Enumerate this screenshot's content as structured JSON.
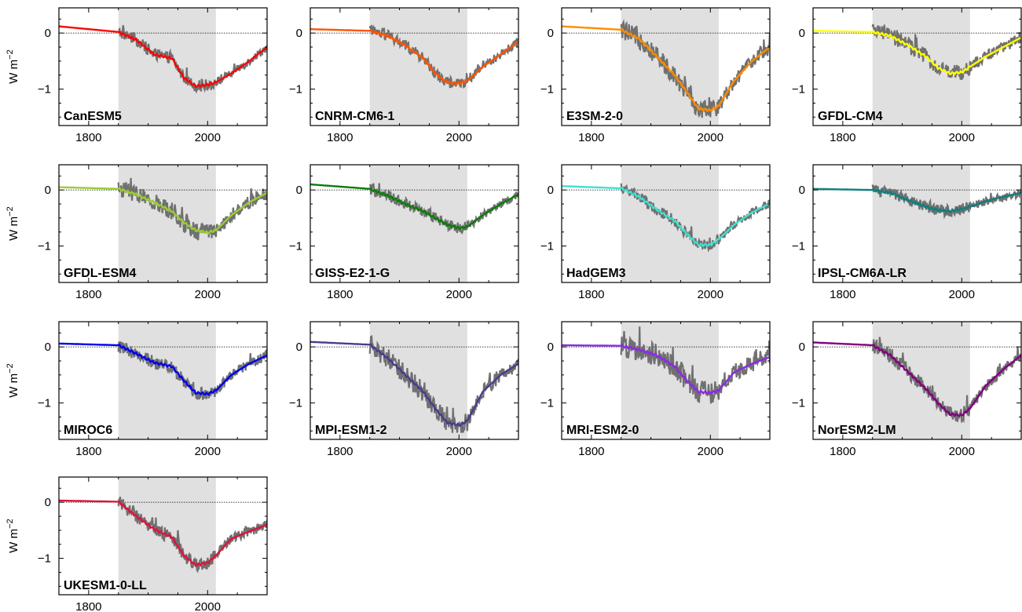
{
  "chart_data": {
    "type": "line",
    "layout": "small-multiples",
    "ylabel": "W m",
    "ylabel_superscript": "−2",
    "xlim": [
      1750,
      2100
    ],
    "ylim": [
      -1.65,
      0.45
    ],
    "xticks": [
      1800,
      2000
    ],
    "xtick_labels": [
      "1800",
      "2000"
    ],
    "yticks": [
      0,
      -1
    ],
    "ytick_labels": [
      "0",
      "−1"
    ],
    "shaded_period": [
      1850,
      2014
    ],
    "shade_color": "#e0e0e0",
    "zero_line": true,
    "raw_series_color": "#707070",
    "models": [
      {
        "name": "CanESM5",
        "color": "#ff0000",
        "pts": [
          [
            1750,
            0.12
          ],
          [
            1850,
            0.02
          ],
          [
            1880,
            -0.12
          ],
          [
            1910,
            -0.38
          ],
          [
            1940,
            -0.45
          ],
          [
            1960,
            -0.8
          ],
          [
            1980,
            -0.95
          ],
          [
            2000,
            -0.92
          ],
          [
            2014,
            -0.88
          ],
          [
            2040,
            -0.72
          ],
          [
            2070,
            -0.5
          ],
          [
            2100,
            -0.25
          ]
        ],
        "noise": 0.1
      },
      {
        "name": "CNRM-CM6-1",
        "color": "#ff5500",
        "pts": [
          [
            1750,
            0.07
          ],
          [
            1850,
            0.04
          ],
          [
            1880,
            -0.05
          ],
          [
            1910,
            -0.22
          ],
          [
            1940,
            -0.45
          ],
          [
            1960,
            -0.72
          ],
          [
            1980,
            -0.88
          ],
          [
            2000,
            -0.9
          ],
          [
            2014,
            -0.85
          ],
          [
            2040,
            -0.6
          ],
          [
            2070,
            -0.38
          ],
          [
            2100,
            -0.15
          ]
        ],
        "noise": 0.1
      },
      {
        "name": "E3SM-2-0",
        "color": "#ff8c00",
        "pts": [
          [
            1750,
            0.12
          ],
          [
            1850,
            0.06
          ],
          [
            1880,
            -0.1
          ],
          [
            1910,
            -0.42
          ],
          [
            1940,
            -0.75
          ],
          [
            1960,
            -1.05
          ],
          [
            1980,
            -1.35
          ],
          [
            2000,
            -1.38
          ],
          [
            2014,
            -1.3
          ],
          [
            2040,
            -0.85
          ],
          [
            2070,
            -0.5
          ],
          [
            2100,
            -0.25
          ]
        ],
        "noise": 0.17
      },
      {
        "name": "GFDL-CM4",
        "color": "#ffff00",
        "pts": [
          [
            1750,
            0.04
          ],
          [
            1850,
            0.02
          ],
          [
            1880,
            -0.05
          ],
          [
            1910,
            -0.22
          ],
          [
            1940,
            -0.42
          ],
          [
            1960,
            -0.62
          ],
          [
            1980,
            -0.72
          ],
          [
            2000,
            -0.7
          ],
          [
            2014,
            -0.6
          ],
          [
            2040,
            -0.42
          ],
          [
            2070,
            -0.25
          ],
          [
            2100,
            -0.08
          ]
        ],
        "noise": 0.14
      },
      {
        "name": "GFDL-ESM4",
        "color": "#9acd32",
        "pts": [
          [
            1750,
            0.05
          ],
          [
            1850,
            0.02
          ],
          [
            1880,
            -0.08
          ],
          [
            1910,
            -0.22
          ],
          [
            1940,
            -0.38
          ],
          [
            1960,
            -0.58
          ],
          [
            1980,
            -0.72
          ],
          [
            2000,
            -0.76
          ],
          [
            2014,
            -0.72
          ],
          [
            2040,
            -0.45
          ],
          [
            2070,
            -0.22
          ],
          [
            2100,
            -0.05
          ]
        ],
        "noise": 0.16
      },
      {
        "name": "GISS-E2-1-G",
        "color": "#0a7d0a",
        "pts": [
          [
            1750,
            0.1
          ],
          [
            1850,
            0.02
          ],
          [
            1880,
            -0.1
          ],
          [
            1910,
            -0.25
          ],
          [
            1940,
            -0.38
          ],
          [
            1960,
            -0.5
          ],
          [
            1980,
            -0.62
          ],
          [
            2000,
            -0.68
          ],
          [
            2014,
            -0.66
          ],
          [
            2040,
            -0.45
          ],
          [
            2070,
            -0.25
          ],
          [
            2100,
            -0.08
          ]
        ],
        "noise": 0.1
      },
      {
        "name": "HadGEM3",
        "color": "#40e0d0",
        "pts": [
          [
            1750,
            0.07
          ],
          [
            1850,
            0.03
          ],
          [
            1880,
            -0.12
          ],
          [
            1910,
            -0.35
          ],
          [
            1940,
            -0.55
          ],
          [
            1960,
            -0.78
          ],
          [
            1980,
            -0.98
          ],
          [
            2000,
            -0.98
          ],
          [
            2014,
            -0.88
          ],
          [
            2040,
            -0.62
          ],
          [
            2070,
            -0.4
          ],
          [
            2100,
            -0.24
          ]
        ],
        "noise": 0.1
      },
      {
        "name": "IPSL-CM6A-LR",
        "color": "#0f7f7f",
        "pts": [
          [
            1750,
            0.02
          ],
          [
            1850,
            0.0
          ],
          [
            1880,
            -0.05
          ],
          [
            1910,
            -0.18
          ],
          [
            1940,
            -0.3
          ],
          [
            1960,
            -0.36
          ],
          [
            1980,
            -0.38
          ],
          [
            2000,
            -0.34
          ],
          [
            2014,
            -0.3
          ],
          [
            2040,
            -0.2
          ],
          [
            2070,
            -0.12
          ],
          [
            2100,
            -0.05
          ]
        ],
        "noise": 0.1
      },
      {
        "name": "MIROC6",
        "color": "#0000ee",
        "pts": [
          [
            1750,
            0.06
          ],
          [
            1850,
            0.03
          ],
          [
            1880,
            -0.12
          ],
          [
            1910,
            -0.28
          ],
          [
            1940,
            -0.35
          ],
          [
            1960,
            -0.6
          ],
          [
            1980,
            -0.82
          ],
          [
            2000,
            -0.84
          ],
          [
            2014,
            -0.78
          ],
          [
            2040,
            -0.5
          ],
          [
            2070,
            -0.3
          ],
          [
            2100,
            -0.15
          ]
        ],
        "noise": 0.12
      },
      {
        "name": "MPI-ESM1-2",
        "color": "#483d8b",
        "pts": [
          [
            1750,
            0.09
          ],
          [
            1850,
            0.04
          ],
          [
            1880,
            -0.2
          ],
          [
            1910,
            -0.5
          ],
          [
            1940,
            -0.8
          ],
          [
            1960,
            -1.1
          ],
          [
            1980,
            -1.35
          ],
          [
            2000,
            -1.4
          ],
          [
            2014,
            -1.32
          ],
          [
            2040,
            -0.8
          ],
          [
            2070,
            -0.5
          ],
          [
            2100,
            -0.3
          ]
        ],
        "noise": 0.18
      },
      {
        "name": "MRI-ESM2-0",
        "color": "#8a2be2",
        "pts": [
          [
            1750,
            0.03
          ],
          [
            1850,
            0.02
          ],
          [
            1880,
            -0.05
          ],
          [
            1910,
            -0.15
          ],
          [
            1940,
            -0.35
          ],
          [
            1960,
            -0.6
          ],
          [
            1980,
            -0.8
          ],
          [
            2000,
            -0.82
          ],
          [
            2014,
            -0.78
          ],
          [
            2040,
            -0.45
          ],
          [
            2070,
            -0.3
          ],
          [
            2100,
            -0.18
          ]
        ],
        "noise": 0.2
      },
      {
        "name": "NorESM2-LM",
        "color": "#800080",
        "pts": [
          [
            1750,
            0.08
          ],
          [
            1850,
            0.03
          ],
          [
            1880,
            -0.15
          ],
          [
            1910,
            -0.45
          ],
          [
            1940,
            -0.75
          ],
          [
            1960,
            -1.0
          ],
          [
            1980,
            -1.2
          ],
          [
            2000,
            -1.22
          ],
          [
            2014,
            -1.1
          ],
          [
            2040,
            -0.7
          ],
          [
            2070,
            -0.4
          ],
          [
            2100,
            -0.15
          ]
        ],
        "noise": 0.14
      },
      {
        "name": "UKESM1-0-LL",
        "color": "#dc143c",
        "pts": [
          [
            1750,
            0.03
          ],
          [
            1850,
            0.01
          ],
          [
            1880,
            -0.25
          ],
          [
            1910,
            -0.48
          ],
          [
            1940,
            -0.62
          ],
          [
            1960,
            -0.95
          ],
          [
            1980,
            -1.12
          ],
          [
            2000,
            -1.08
          ],
          [
            2014,
            -0.95
          ],
          [
            2040,
            -0.65
          ],
          [
            2070,
            -0.52
          ],
          [
            2100,
            -0.4
          ]
        ],
        "noise": 0.12
      }
    ]
  }
}
